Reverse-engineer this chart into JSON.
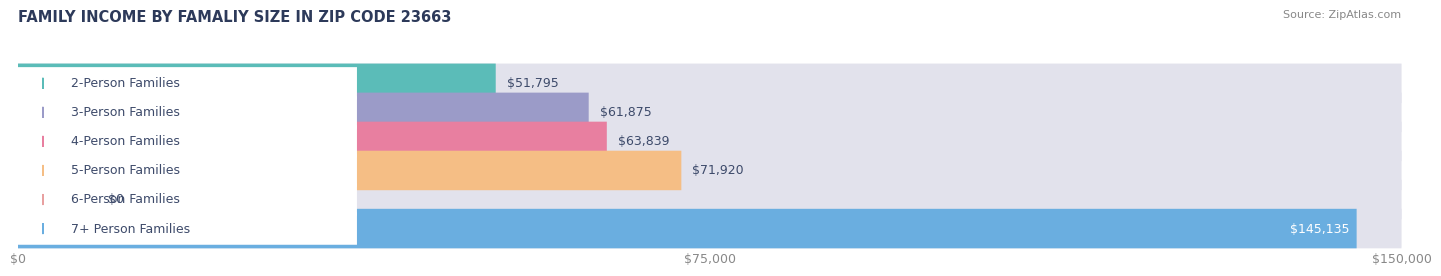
{
  "title": "FAMILY INCOME BY FAMALIY SIZE IN ZIP CODE 23663",
  "source": "Source: ZipAtlas.com",
  "categories": [
    "2-Person Families",
    "3-Person Families",
    "4-Person Families",
    "5-Person Families",
    "6-Person Families",
    "7+ Person Families"
  ],
  "values": [
    51795,
    61875,
    63839,
    71920,
    0,
    145135
  ],
  "labels": [
    "$51,795",
    "$61,875",
    "$63,839",
    "$71,920",
    "$0",
    "$145,135"
  ],
  "bar_colors": [
    "#5bbcb8",
    "#9b9bc8",
    "#e87fa0",
    "#f5be85",
    "#e8a0a0",
    "#6aaee0"
  ],
  "bar_bg_color": "#e2e2ec",
  "max_value": 150000,
  "xticks": [
    0,
    75000,
    150000
  ],
  "xtick_labels": [
    "$0",
    "$75,000",
    "$150,000"
  ],
  "title_color": "#2d3a5a",
  "source_color": "#888888",
  "label_fontsize": 9,
  "title_fontsize": 10.5,
  "bar_height": 0.68
}
